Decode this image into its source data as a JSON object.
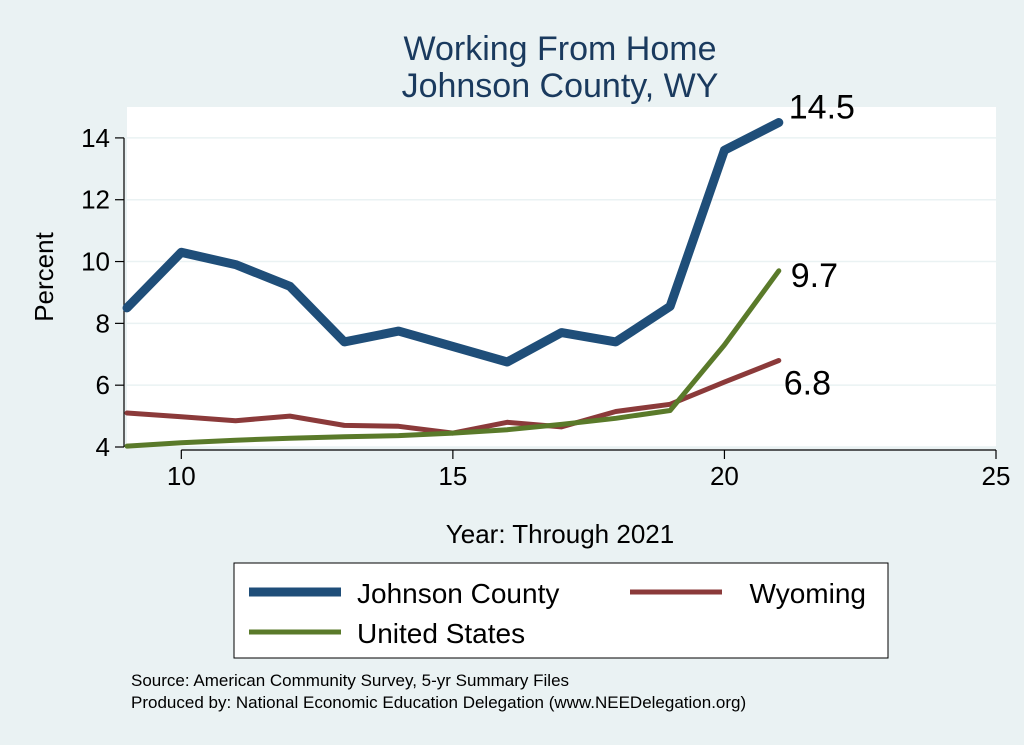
{
  "chart_data": {
    "type": "line",
    "title": [
      "Working From Home",
      "Johnson County, WY"
    ],
    "xlabel": "Year: Through 2021",
    "ylabel": "Percent",
    "xlim": [
      9,
      25
    ],
    "ylim": [
      4,
      15
    ],
    "xticks": [
      10,
      15,
      20,
      25
    ],
    "yticks": [
      4,
      6,
      8,
      10,
      12,
      14
    ],
    "grid": true,
    "legend_position": "bottom",
    "series": [
      {
        "name": "Johnson County",
        "color": "#1f4e79",
        "x": [
          9,
          10,
          11,
          12,
          13,
          14,
          15,
          16,
          17,
          18,
          19,
          20,
          21
        ],
        "y": [
          8.5,
          10.3,
          9.9,
          9.2,
          7.4,
          7.75,
          7.25,
          6.75,
          7.7,
          7.4,
          8.55,
          13.6,
          14.5
        ],
        "end_label": "14.5"
      },
      {
        "name": "Wyoming",
        "color": "#8b3a3a",
        "x": [
          9,
          10,
          11,
          12,
          13,
          14,
          15,
          16,
          17,
          18,
          19,
          20,
          21
        ],
        "y": [
          5.1,
          4.98,
          4.85,
          5.0,
          4.7,
          4.67,
          4.45,
          4.8,
          4.65,
          5.15,
          5.38,
          6.1,
          6.8
        ],
        "end_label": "6.8"
      },
      {
        "name": "United States",
        "color": "#5a7a2a",
        "x": [
          9,
          10,
          11,
          12,
          13,
          14,
          15,
          16,
          17,
          18,
          19,
          20,
          21
        ],
        "y": [
          4.03,
          4.14,
          4.22,
          4.28,
          4.33,
          4.37,
          4.45,
          4.56,
          4.73,
          4.93,
          5.18,
          7.3,
          9.7
        ],
        "end_label": "9.7"
      }
    ],
    "footnotes": [
      "Source: American Community Survey, 5-yr Summary Files",
      "Produced by: National Economic Education Delegation (www.NEEDelegation.org)"
    ]
  }
}
